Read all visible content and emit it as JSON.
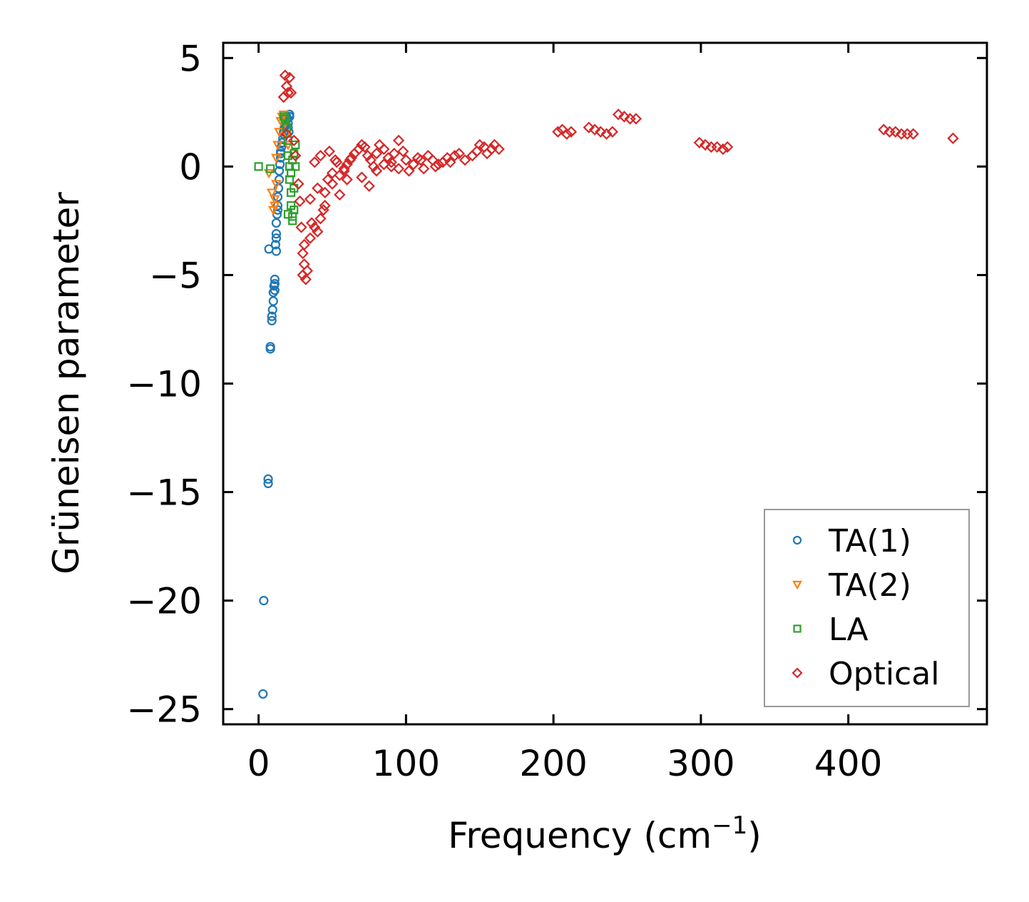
{
  "chart_data": {
    "type": "scatter",
    "title": "",
    "xlabel": "Frequency (cm",
    "xlabel_sup": "−1",
    "xlabel_end": ")",
    "ylabel": "Grüneisen parameter",
    "xlim": [
      -24,
      494
    ],
    "ylim": [
      -25.7,
      5.7
    ],
    "xticks": [
      0,
      100,
      200,
      300,
      400
    ],
    "xtick_labels": [
      "0",
      "100",
      "200",
      "300",
      "400"
    ],
    "yticks": [
      5,
      0,
      -5,
      -10,
      -15,
      -20,
      -25
    ],
    "ytick_labels": [
      "5",
      "0",
      "−5",
      "−10",
      "−15",
      "−20",
      "−25"
    ],
    "legend_position": "lower-right",
    "series": [
      {
        "name": "TA(1)",
        "marker": "circle",
        "color": "#1f77b4",
        "x": [
          3,
          3.5,
          6.5,
          6.5,
          7,
          8,
          8,
          9,
          9,
          9.5,
          10,
          10,
          10.5,
          11,
          11,
          11,
          12,
          11.5,
          12,
          12,
          12.5,
          13,
          13,
          13.5,
          14,
          14,
          14.5,
          15,
          15,
          15.5,
          16,
          16.5,
          17,
          17,
          17.5,
          18,
          18,
          18.5,
          19,
          19,
          19.5,
          20,
          20,
          20.5,
          21,
          21,
          13,
          15,
          12
        ],
        "y": [
          -24.3,
          -20.0,
          -14.6,
          -14.4,
          -3.8,
          -8.4,
          -8.3,
          -7.1,
          -6.9,
          -6.6,
          -6.2,
          -5.8,
          -5.5,
          -5.7,
          -5.4,
          -5.2,
          -3.9,
          -3.6,
          -3.1,
          -2.6,
          -2.2,
          -1.8,
          -1.4,
          -1.0,
          -0.6,
          -0.2,
          0.1,
          0.4,
          0.6,
          0.9,
          1.1,
          1.3,
          1.5,
          1.6,
          1.8,
          1.9,
          2.0,
          2.1,
          2.2,
          2.3,
          2.2,
          2.0,
          1.8,
          1.6,
          2.3,
          2.4,
          -2.0,
          0.7,
          -3.3
        ]
      },
      {
        "name": "TA(2)",
        "marker": "triangle-down",
        "color": "#ff7f0e",
        "x": [
          7,
          9,
          11,
          12,
          13,
          14,
          15,
          16,
          17,
          18,
          19,
          20,
          10,
          11,
          12
        ],
        "y": [
          -0.3,
          -1.2,
          -1.8,
          0.4,
          1.0,
          1.6,
          2.1,
          2.3,
          2.4,
          2.0,
          1.5,
          1.0,
          -2.0,
          -1.5,
          -0.8
        ]
      },
      {
        "name": "LA",
        "marker": "square",
        "color": "#2ca02c",
        "x": [
          0,
          8,
          17,
          18,
          19,
          20,
          20,
          21,
          21,
          22,
          22,
          23,
          23,
          24,
          24,
          25,
          25,
          24,
          22,
          20,
          23
        ],
        "y": [
          0.0,
          -0.1,
          2.3,
          2.2,
          1.8,
          1.2,
          0.5,
          0.0,
          -0.6,
          -1.2,
          -1.8,
          -2.3,
          -2.5,
          -2.0,
          -1.0,
          0.0,
          1.0,
          0.6,
          -0.3,
          -2.2,
          0.3
        ]
      },
      {
        "name": "Optical",
        "marker": "diamond",
        "color": "#d62728",
        "x": [
          18,
          19,
          20,
          21,
          22,
          17,
          19,
          24,
          25,
          27,
          28,
          29,
          30,
          31,
          32,
          33,
          30,
          31,
          35,
          36,
          38,
          40,
          42,
          44,
          45,
          47,
          50,
          52,
          55,
          58,
          60,
          62,
          65,
          68,
          70,
          72,
          74,
          76,
          78,
          80,
          82,
          85,
          88,
          90,
          92,
          95,
          98,
          100,
          102,
          105,
          108,
          110,
          112,
          115,
          118,
          120,
          122,
          125,
          128,
          130,
          133,
          136,
          140,
          145,
          148,
          150,
          153,
          155,
          158,
          160,
          163,
          203,
          206,
          209,
          212,
          224,
          228,
          232,
          236,
          240,
          244,
          248,
          252,
          256,
          299,
          303,
          307,
          311,
          315,
          318,
          424,
          428,
          432,
          436,
          440,
          444,
          471,
          35,
          40,
          45,
          50,
          55,
          60,
          38,
          42,
          48,
          53,
          58,
          63,
          70,
          75,
          80,
          85,
          90,
          95
        ],
        "y": [
          4.2,
          3.7,
          3.4,
          4.1,
          3.4,
          3.2,
          1.5,
          1.2,
          0.5,
          -0.8,
          -1.6,
          -2.8,
          -4.0,
          -4.5,
          -5.2,
          -4.8,
          -5.0,
          -3.6,
          -3.3,
          -2.6,
          -2.8,
          -3.0,
          -2.4,
          -2.0,
          -1.2,
          -0.6,
          -0.3,
          0.3,
          -0.4,
          -0.2,
          0.1,
          0.3,
          0.6,
          0.8,
          1.0,
          0.9,
          0.5,
          0.3,
          0.0,
          0.6,
          1.0,
          0.8,
          0.4,
          0.2,
          0.6,
          1.2,
          0.7,
          0.3,
          -0.2,
          0.1,
          0.4,
          0.3,
          -0.1,
          0.5,
          0.3,
          0.0,
          0.1,
          0.2,
          0.4,
          0.2,
          0.5,
          0.6,
          0.3,
          0.5,
          0.7,
          1.0,
          0.9,
          0.6,
          0.8,
          1.0,
          0.8,
          1.6,
          1.7,
          1.5,
          1.6,
          1.8,
          1.7,
          1.6,
          1.5,
          1.6,
          2.4,
          2.3,
          2.2,
          2.2,
          1.1,
          1.0,
          0.9,
          0.9,
          0.8,
          0.9,
          1.7,
          1.6,
          1.6,
          1.5,
          1.5,
          1.5,
          1.3,
          -1.5,
          -1.0,
          -1.8,
          -0.8,
          -1.3,
          -0.6,
          0.2,
          0.5,
          0.7,
          0.2,
          -0.1,
          0.4,
          -0.5,
          -0.9,
          -0.2,
          0.1,
          0.0,
          -0.1
        ]
      }
    ]
  }
}
